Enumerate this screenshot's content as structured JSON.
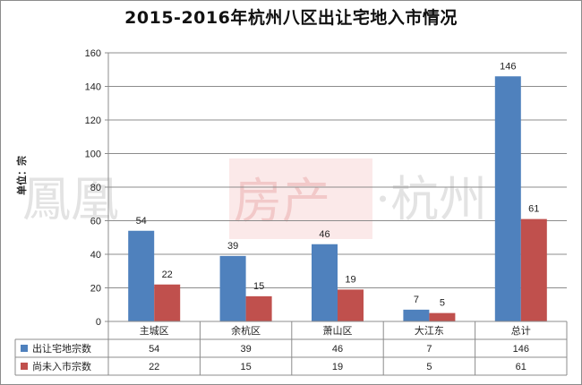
{
  "title": "2015-2016年杭州八区出让宅地入市情况",
  "watermark": {
    "text_left": "鳳凰",
    "text_mid": "房产",
    "text_right": "·杭州"
  },
  "colors": {
    "series1": "#4f81bd",
    "series2": "#c0504d",
    "grid": "#8c8c8c",
    "axis": "#8c8c8c",
    "watermark_mid": "#f2c9c9",
    "watermark_side": "#e3e3e3"
  },
  "chart_data": {
    "type": "bar",
    "title": "2015-2016年杭州八区出让宅地入市情况",
    "ylabel": "单位：宗",
    "xlabel": "",
    "ylim": [
      0,
      160
    ],
    "yticks": [
      0,
      20,
      40,
      60,
      80,
      100,
      120,
      140,
      160
    ],
    "categories": [
      "主城区",
      "余杭区",
      "萧山区",
      "大江东",
      "总计"
    ],
    "series": [
      {
        "name": "出让宅地宗数",
        "values": [
          54,
          39,
          46,
          7,
          146
        ]
      },
      {
        "name": "尚未入市宗数",
        "values": [
          22,
          15,
          19,
          5,
          61
        ]
      }
    ],
    "grid": true,
    "data_table": true
  }
}
